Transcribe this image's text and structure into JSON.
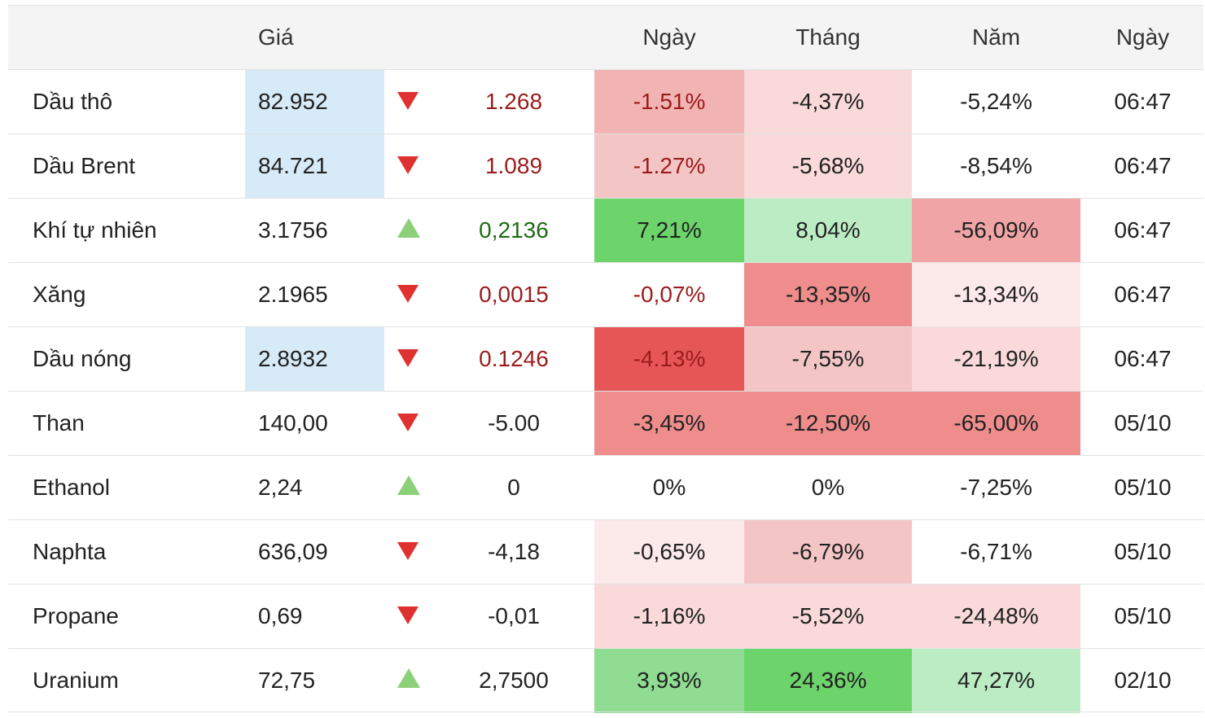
{
  "header": {
    "name": "",
    "price": "Giá",
    "arrow": "",
    "change": "",
    "day": "Ngày",
    "month": "Tháng",
    "year": "Năm",
    "date": "Ngày"
  },
  "colors": {
    "price_highlight": "#d6eaf7",
    "down_arrow": "#e03131",
    "up_arrow": "#8dd07a",
    "change_negative_text": "#9b1c1c",
    "change_positive_text": "#1d6b12"
  },
  "rows": [
    {
      "name": "Dầu thô",
      "price": "82.952",
      "price_highlight": true,
      "direction": "down",
      "direction_icon": "down-triangle-icon",
      "change": "1.268",
      "change_style": "down-red",
      "day": "-1.51%",
      "day_bg": "#f2b3b3",
      "day_red": true,
      "month": "-4,37%",
      "month_bg": "#f9d9da",
      "year": "-5,24%",
      "year_bg": "#ffffff",
      "date": "06:47"
    },
    {
      "name": "Dầu Brent",
      "price": "84.721",
      "price_highlight": true,
      "direction": "down",
      "direction_icon": "down-triangle-icon",
      "change": "1.089",
      "change_style": "down-red",
      "day": "-1.27%",
      "day_bg": "#f4c5c5",
      "day_red": true,
      "month": "-5,68%",
      "month_bg": "#f9d9da",
      "year": "-8,54%",
      "year_bg": "#ffffff",
      "date": "06:47"
    },
    {
      "name": "Khí tự nhiên",
      "price": "3.1756",
      "price_highlight": false,
      "direction": "up",
      "direction_icon": "up-triangle-icon",
      "change": "0,2136",
      "change_style": "up-green",
      "day": "7,21%",
      "day_bg": "#6dd36b",
      "day_red": false,
      "month": "8,04%",
      "month_bg": "#bcecc4",
      "year": "-56,09%",
      "year_bg": "#f0a4a5",
      "date": "06:47"
    },
    {
      "name": "Xăng",
      "price": "2.1965",
      "price_highlight": false,
      "direction": "down",
      "direction_icon": "down-triangle-icon",
      "change": "0,0015",
      "change_style": "down-red",
      "day": "-0,07%",
      "day_bg": "#ffffff",
      "day_red": true,
      "month": "-13,35%",
      "month_bg": "#ef8d8d",
      "year": "-13,34%",
      "year_bg": "#fce9ea",
      "date": "06:47"
    },
    {
      "name": "Dầu nóng",
      "price": "2.8932",
      "price_highlight": true,
      "direction": "down",
      "direction_icon": "down-triangle-icon",
      "change": "0.1246",
      "change_style": "down-red",
      "day": "-4.13%",
      "day_bg": "#e65656",
      "day_red": true,
      "month": "-7,55%",
      "month_bg": "#f4c5c5",
      "year": "-21,19%",
      "year_bg": "#f9d9da",
      "date": "06:47"
    },
    {
      "name": "Than",
      "price": "140,00",
      "price_highlight": false,
      "direction": "down",
      "direction_icon": "down-triangle-icon",
      "change": "-5.00",
      "change_style": "neutral",
      "day": "-3,45%",
      "day_bg": "#ef8d8d",
      "day_red": false,
      "month": "-12,50%",
      "month_bg": "#ef8d8d",
      "year": "-65,00%",
      "year_bg": "#ef8d8d",
      "date": "05/10"
    },
    {
      "name": "Ethanol",
      "price": "2,24",
      "price_highlight": false,
      "direction": "up",
      "direction_icon": "up-triangle-icon",
      "change": "0",
      "change_style": "neutral",
      "day": "0%",
      "day_bg": "#ffffff",
      "day_red": false,
      "month": "0%",
      "month_bg": "#ffffff",
      "year": "-7,25%",
      "year_bg": "#ffffff",
      "date": "05/10"
    },
    {
      "name": "Naphta",
      "price": "636,09",
      "price_highlight": false,
      "direction": "down",
      "direction_icon": "down-triangle-icon",
      "change": "-4,18",
      "change_style": "neutral",
      "day": "-0,65%",
      "day_bg": "#fce9ea",
      "day_red": false,
      "month": "-6,79%",
      "month_bg": "#f4c5c5",
      "year": "-6,71%",
      "year_bg": "#ffffff",
      "date": "05/10"
    },
    {
      "name": "Propane",
      "price": "0,69",
      "price_highlight": false,
      "direction": "down",
      "direction_icon": "down-triangle-icon",
      "change": "-0,01",
      "change_style": "neutral",
      "day": "-1,16%",
      "day_bg": "#f9d9da",
      "day_red": false,
      "month": "-5,52%",
      "month_bg": "#f9d9da",
      "year": "-24,48%",
      "year_bg": "#f9d9da",
      "date": "05/10"
    },
    {
      "name": "Uranium",
      "price": "72,75",
      "price_highlight": false,
      "direction": "up",
      "direction_icon": "up-triangle-icon",
      "change": "2,7500",
      "change_style": "neutral",
      "day": "3,93%",
      "day_bg": "#8fdc92",
      "day_red": false,
      "month": "24,36%",
      "month_bg": "#6dd36b",
      "year": "47,27%",
      "year_bg": "#bcecc4",
      "date": "02/10"
    }
  ]
}
